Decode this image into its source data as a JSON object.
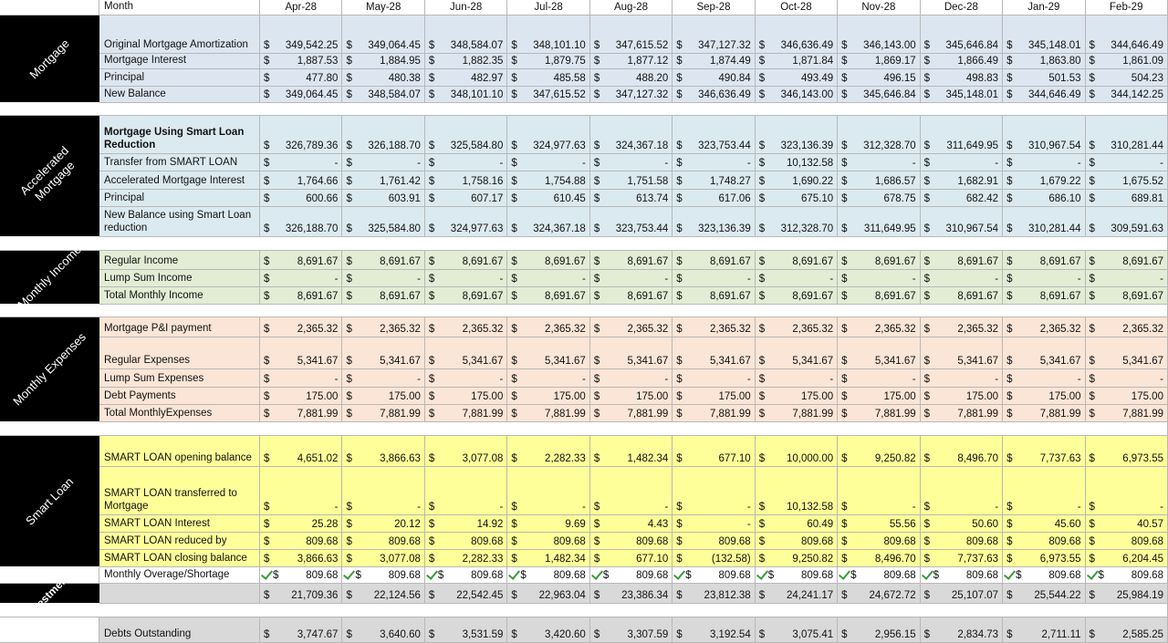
{
  "header": {
    "month_label": "Month",
    "months": [
      "Apr-28",
      "May-28",
      "Jun-28",
      "Jul-28",
      "Aug-28",
      "Sep-28",
      "Oct-28",
      "Nov-28",
      "Dec-28",
      "Jan-29",
      "Feb-29"
    ]
  },
  "currency": "$",
  "sections": [
    {
      "label": "Mortgage",
      "rows": [
        {
          "label": "Original Mortgage Amortization",
          "values": [
            "349,542.25",
            "349,064.45",
            "348,584.07",
            "348,101.10",
            "347,615.52",
            "347,127.32",
            "346,636.49",
            "346,143.00",
            "345,646.84",
            "345,148.01",
            "344,646.49"
          ]
        },
        {
          "label": "Mortgage Interest",
          "values": [
            "1,887.53",
            "1,884.95",
            "1,882.35",
            "1,879.75",
            "1,877.12",
            "1,874.49",
            "1,871.84",
            "1,869.17",
            "1,866.49",
            "1,863.80",
            "1,861.09"
          ]
        },
        {
          "label": "Principal",
          "values": [
            "477.80",
            "480.38",
            "482.97",
            "485.58",
            "488.20",
            "490.84",
            "493.49",
            "496.15",
            "498.83",
            "501.53",
            "504.23"
          ]
        },
        {
          "label": "New Balance",
          "values": [
            "349,064.45",
            "348,584.07",
            "348,101.10",
            "347,615.52",
            "347,127.32",
            "346,636.49",
            "346,143.00",
            "345,646.84",
            "345,148.01",
            "344,646.49",
            "344,142.25"
          ]
        }
      ]
    },
    {
      "label": "Accelerated Mortgage",
      "rows": [
        {
          "label": "Mortgage Using Smart Loan Reduction",
          "values": [
            "326,789.36",
            "326,188.70",
            "325,584.80",
            "324,977.63",
            "324,367.18",
            "323,753.44",
            "323,136.39",
            "312,328.70",
            "311,649.95",
            "310,967.54",
            "310,281.44"
          ]
        },
        {
          "label": "Transfer from SMART LOAN",
          "values": [
            "-",
            "-",
            "-",
            "-",
            "-",
            "-",
            "10,132.58",
            "-",
            "-",
            "-",
            "-"
          ]
        },
        {
          "label": "Accelerated Mortgage Interest",
          "values": [
            "1,764.66",
            "1,761.42",
            "1,758.16",
            "1,754.88",
            "1,751.58",
            "1,748.27",
            "1,690.22",
            "1,686.57",
            "1,682.91",
            "1,679.22",
            "1,675.52"
          ]
        },
        {
          "label": "Principal",
          "values": [
            "600.66",
            "603.91",
            "607.17",
            "610.45",
            "613.74",
            "617.06",
            "675.10",
            "678.75",
            "682.42",
            "686.10",
            "689.81"
          ]
        },
        {
          "label": "New Balance using Smart Loan reduction",
          "values": [
            "326,188.70",
            "325,584.80",
            "324,977.63",
            "324,367.18",
            "323,753.44",
            "323,136.39",
            "312,328.70",
            "311,649.95",
            "310,967.54",
            "310,281.44",
            "309,591.63"
          ]
        }
      ]
    },
    {
      "label": "Monthly Income",
      "rows": [
        {
          "label": "Regular Income",
          "values": [
            "8,691.67",
            "8,691.67",
            "8,691.67",
            "8,691.67",
            "8,691.67",
            "8,691.67",
            "8,691.67",
            "8,691.67",
            "8,691.67",
            "8,691.67",
            "8,691.67"
          ]
        },
        {
          "label": "Lump Sum Income",
          "values": [
            "-",
            "-",
            "-",
            "-",
            "-",
            "-",
            "-",
            "-",
            "-",
            "-",
            "-"
          ]
        },
        {
          "label": "Total Monthly Income",
          "values": [
            "8,691.67",
            "8,691.67",
            "8,691.67",
            "8,691.67",
            "8,691.67",
            "8,691.67",
            "8,691.67",
            "8,691.67",
            "8,691.67",
            "8,691.67",
            "8,691.67"
          ]
        }
      ]
    },
    {
      "label": "Monthly Expenses",
      "rows": [
        {
          "label": "Mortgage P&I payment",
          "values": [
            "2,365.32",
            "2,365.32",
            "2,365.32",
            "2,365.32",
            "2,365.32",
            "2,365.32",
            "2,365.32",
            "2,365.32",
            "2,365.32",
            "2,365.32",
            "2,365.32"
          ]
        },
        {
          "label": "Regular Expenses",
          "values": [
            "5,341.67",
            "5,341.67",
            "5,341.67",
            "5,341.67",
            "5,341.67",
            "5,341.67",
            "5,341.67",
            "5,341.67",
            "5,341.67",
            "5,341.67",
            "5,341.67"
          ]
        },
        {
          "label": "Lump Sum Expenses",
          "values": [
            "-",
            "-",
            "-",
            "-",
            "-",
            "-",
            "-",
            "-",
            "-",
            "-",
            "-"
          ]
        },
        {
          "label": "Debt Payments",
          "values": [
            "175.00",
            "175.00",
            "175.00",
            "175.00",
            "175.00",
            "175.00",
            "175.00",
            "175.00",
            "175.00",
            "175.00",
            "175.00"
          ]
        },
        {
          "label": "Total MonthlyExpenses",
          "values": [
            "7,881.99",
            "7,881.99",
            "7,881.99",
            "7,881.99",
            "7,881.99",
            "7,881.99",
            "7,881.99",
            "7,881.99",
            "7,881.99",
            "7,881.99",
            "7,881.99"
          ]
        }
      ]
    },
    {
      "label": "Smart Loan",
      "rows": [
        {
          "label": "SMART LOAN opening balance",
          "values": [
            "4,651.02",
            "3,866.63",
            "3,077.08",
            "2,282.33",
            "1,482.34",
            "677.10",
            "10,000.00",
            "9,250.82",
            "8,496.70",
            "7,737.63",
            "6,973.55"
          ]
        },
        {
          "label": "SMART LOAN transferred to Mortgage",
          "values": [
            "-",
            "-",
            "-",
            "-",
            "-",
            "-",
            "10,132.58",
            "-",
            "-",
            "-",
            "-"
          ]
        },
        {
          "label": "SMART LOAN Interest",
          "values": [
            "25.28",
            "20.12",
            "14.92",
            "9.69",
            "4.43",
            "-",
            "60.49",
            "55.56",
            "50.60",
            "45.60",
            "40.57"
          ]
        },
        {
          "label": "SMART LOAN reduced by",
          "values": [
            "809.68",
            "809.68",
            "809.68",
            "809.68",
            "809.68",
            "809.68",
            "809.68",
            "809.68",
            "809.68",
            "809.68",
            "809.68"
          ]
        },
        {
          "label": "SMART LOAN closing balance",
          "values": [
            "3,866.63",
            "3,077.08",
            "2,282.33",
            "1,482.34",
            "677.10",
            "(132.58)",
            "9,250.82",
            "8,496.70",
            "7,737.63",
            "6,973.55",
            "6,204.45"
          ]
        }
      ]
    },
    {
      "rows": [
        {
          "label": "Monthly Overage/Shortage",
          "values": [
            "809.68",
            "809.68",
            "809.68",
            "809.68",
            "809.68",
            "809.68",
            "809.68",
            "809.68",
            "809.68",
            "809.68",
            "809.68"
          ]
        }
      ]
    },
    {
      "label": "Investments",
      "rows": [
        {
          "values": [
            "21,709.36",
            "22,124.56",
            "22,542.45",
            "22,963.04",
            "23,386.34",
            "23,812.38",
            "24,241.17",
            "24,672.72",
            "25,107.07",
            "25,544.22",
            "25,984.19"
          ]
        }
      ]
    },
    {
      "rows": [
        {
          "label": "Debts Outstanding",
          "values": [
            "3,747.67",
            "3,640.60",
            "3,531.59",
            "3,420.60",
            "3,307.59",
            "3,192.54",
            "3,075.41",
            "2,956.15",
            "2,834.73",
            "2,711.11",
            "2,585.25"
          ]
        }
      ]
    }
  ]
}
